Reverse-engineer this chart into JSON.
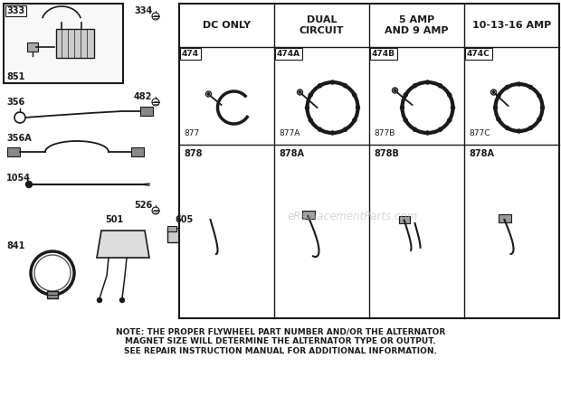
{
  "bg_color": "#ffffff",
  "watermark": "eReplacementParts.com",
  "note_text": "NOTE: THE PROPER FLYWHEEL PART NUMBER AND/OR THE ALTERNATOR\nMAGNET SIZE WILL DETERMINE THE ALTERNATOR TYPE OR OUTPUT.\nSEE REPAIR INSTRUCTION MANUAL FOR ADDITIONAL INFORMATION.",
  "table_headers": [
    "DC ONLY",
    "DUAL\nCIRCUIT",
    "5 AMP\nAND 9 AMP",
    "10-13-16 AMP"
  ],
  "row1_parts": [
    "474",
    "474A",
    "474B",
    "474C"
  ],
  "row1_labels": [
    "877",
    "877A",
    "877B",
    "877C"
  ],
  "row2_parts": [
    "878",
    "878A",
    "878B",
    "878A"
  ]
}
